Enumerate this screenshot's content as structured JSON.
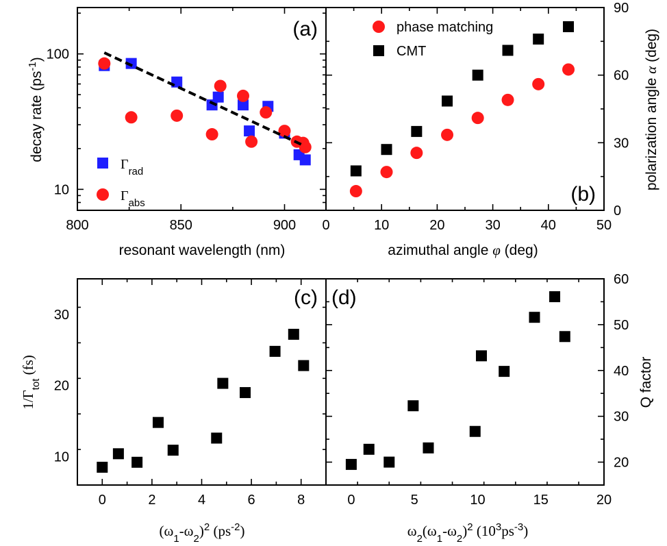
{
  "chart_data": [
    {
      "id": "a",
      "type": "scatter",
      "panel_label": "(a)",
      "xlabel": "resonant wavelength (nm)",
      "ylabel": "decay rate (ps-1)",
      "y_scale": "log",
      "xlim": [
        800,
        920
      ],
      "ylim": [
        7,
        220
      ],
      "x_ticks": [
        800,
        850,
        900
      ],
      "y_ticks": [
        10,
        100
      ],
      "legend": {
        "position": "bottom-left",
        "entries": [
          "Γrad",
          "Γabs"
        ]
      },
      "series": [
        {
          "name": "Γrad",
          "marker": "square",
          "color": "#1f1fff",
          "x": [
            813,
            826,
            848,
            865,
            868,
            880,
            883,
            892,
            900,
            907,
            910
          ],
          "y": [
            82,
            85,
            62,
            42,
            48,
            42,
            27,
            41,
            26,
            18,
            16.5
          ]
        },
        {
          "name": "Γabs",
          "marker": "circle",
          "color": "#ff1a1a",
          "x": [
            813,
            826,
            848,
            865,
            869,
            880,
            884,
            891,
            900,
            906,
            909,
            910
          ],
          "y": [
            85,
            34,
            35,
            25.5,
            58,
            49,
            22.5,
            37,
            27,
            22.5,
            22,
            20.5
          ]
        },
        {
          "name": "",
          "type": "line",
          "dashed": true,
          "color": "#000000",
          "x": [
            813,
            908
          ],
          "y": [
            102,
            21.5
          ]
        }
      ]
    },
    {
      "id": "b",
      "type": "scatter",
      "panel_label": "(b)",
      "xlabel": "azimuthal angle φ (deg)",
      "ylabel": "polarization angle α (deg)",
      "y_axis_side": "right",
      "xlim": [
        0,
        50
      ],
      "ylim": [
        0,
        90
      ],
      "x_ticks": [
        0,
        10,
        20,
        30,
        40,
        50
      ],
      "y_ticks": [
        0,
        30,
        60,
        90
      ],
      "legend": {
        "position": "top-left",
        "entries": [
          "phase matching",
          "CMT"
        ]
      },
      "series": [
        {
          "name": "phase matching",
          "marker": "circle",
          "color": "#ff1a1a",
          "x": [
            5.4,
            10.9,
            16.3,
            21.8,
            27.3,
            32.7,
            38.2,
            43.6
          ],
          "y": [
            8.5,
            17,
            25.5,
            33.5,
            41,
            49,
            56,
            62.5
          ]
        },
        {
          "name": "CMT",
          "marker": "square",
          "color": "#000000",
          "x": [
            5.4,
            10.9,
            16.3,
            21.8,
            27.3,
            32.7,
            38.2,
            43.6
          ],
          "y": [
            17.5,
            27,
            35,
            48.5,
            60,
            71,
            76,
            81.5
          ]
        }
      ]
    },
    {
      "id": "c",
      "type": "scatter",
      "panel_label": "(c)",
      "xlabel": "(ω1-ω2)2 (ps-2)",
      "ylabel": "1/Γtot (fs)",
      "xlim": [
        -1,
        9
      ],
      "ylim": [
        6,
        35
      ],
      "x_ticks": [
        0,
        2,
        4,
        6,
        8
      ],
      "y_ticks": [
        10,
        20,
        30
      ],
      "series": [
        {
          "name": "",
          "marker": "square",
          "color": "#000000",
          "x": [
            0,
            0.65,
            1.4,
            2.25,
            2.85,
            4.6,
            4.85,
            5.75,
            6.95,
            7.7,
            8.1
          ],
          "y": [
            8.5,
            10.4,
            9.2,
            14.8,
            10.9,
            12.6,
            20.3,
            19,
            24.8,
            27.2,
            22.8
          ]
        }
      ]
    },
    {
      "id": "d",
      "type": "scatter",
      "panel_label": "(d)",
      "xlabel": "ω2(ω1-ω2)2 (103ps-3)",
      "ylabel": "Q factor",
      "y_axis_side": "right",
      "xlim": [
        -2,
        20
      ],
      "ylim": [
        15,
        60
      ],
      "x_ticks": [
        0,
        5,
        10,
        15,
        20
      ],
      "y_ticks": [
        20,
        30,
        40,
        50,
        60
      ],
      "series": [
        {
          "name": "",
          "marker": "square",
          "color": "#000000",
          "x": [
            0,
            1.4,
            3,
            4.9,
            6.1,
            9.8,
            10.3,
            12.1,
            14.5,
            16.1,
            16.9
          ],
          "y": [
            19.5,
            22.8,
            20,
            32.3,
            23.1,
            26.7,
            43.2,
            39.8,
            51.6,
            56.1,
            47.4
          ]
        }
      ]
    }
  ]
}
